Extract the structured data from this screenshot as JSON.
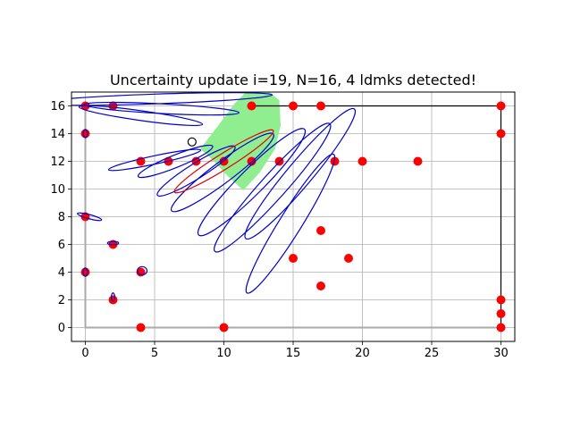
{
  "chart_data": {
    "type": "scatter",
    "title": "Uncertainty update i=19, N=16, 4 ldmks detected!",
    "xlabel": "",
    "ylabel": "",
    "xlim": [
      -1,
      31
    ],
    "ylim": [
      -1,
      17
    ],
    "x_ticks": [
      0,
      5,
      10,
      15,
      20,
      25,
      30
    ],
    "y_ticks": [
      0,
      2,
      4,
      6,
      8,
      10,
      12,
      14,
      16
    ],
    "grid": true,
    "colors": {
      "landmark": "#ff0000",
      "ellipse": "#0000cc",
      "robot_ellipse": "#dd0000",
      "fov": "#90ee90",
      "grid": "#b0b0b0",
      "boundary": "#000000",
      "boundary_gray": "#aaaaaa"
    },
    "boundary": {
      "black": [
        [
          12,
          16
        ],
        [
          30,
          16
        ],
        [
          30,
          0
        ]
      ],
      "gray": [
        [
          0,
          16
        ],
        [
          0,
          0
        ],
        [
          30,
          0
        ]
      ]
    },
    "fov_polygon": [
      [
        8.3,
        12.9
      ],
      [
        9.6,
        14.6
      ],
      [
        10.8,
        16.2
      ],
      [
        11.6,
        17.0
      ],
      [
        13.3,
        17.0
      ],
      [
        14.0,
        16.4
      ],
      [
        14.1,
        14.6
      ],
      [
        13.7,
        12.9
      ],
      [
        12.6,
        11.2
      ],
      [
        11.4,
        9.9
      ],
      [
        10.2,
        11.0
      ],
      [
        9.3,
        12.0
      ]
    ],
    "landmarks": [
      [
        0,
        16
      ],
      [
        2,
        16
      ],
      [
        0,
        14
      ],
      [
        0,
        8
      ],
      [
        0,
        4
      ],
      [
        2,
        6
      ],
      [
        2,
        2
      ],
      [
        4,
        12
      ],
      [
        4,
        4
      ],
      [
        4,
        0
      ],
      [
        6,
        12
      ],
      [
        8,
        12
      ],
      [
        10,
        12
      ],
      [
        10,
        0
      ],
      [
        12,
        16
      ],
      [
        12,
        12
      ],
      [
        14,
        12
      ],
      [
        15,
        16
      ],
      [
        15,
        5
      ],
      [
        17,
        16
      ],
      [
        17,
        7
      ],
      [
        17,
        3
      ],
      [
        18,
        12
      ],
      [
        19,
        5
      ],
      [
        20,
        12
      ],
      [
        24,
        12
      ],
      [
        30,
        16
      ],
      [
        30,
        14
      ],
      [
        30,
        2
      ],
      [
        30,
        1
      ],
      [
        30,
        0
      ]
    ],
    "estimate_ellipses": [
      {
        "cx": 5,
        "cy": 16.5,
        "rx": 8.5,
        "ry": 0.35,
        "angle": -2
      },
      {
        "cx": 5.5,
        "cy": 15.8,
        "rx": 5.6,
        "ry": 0.35,
        "angle": 3
      },
      {
        "cx": 4,
        "cy": 15.3,
        "rx": 4.5,
        "ry": 0.35,
        "angle": 8
      },
      {
        "cx": 5,
        "cy": 12.1,
        "rx": 3.4,
        "ry": 0.3,
        "angle": -12
      },
      {
        "cx": 6.5,
        "cy": 12.0,
        "rx": 2.9,
        "ry": 0.45,
        "angle": -22
      },
      {
        "cx": 8.0,
        "cy": 11.3,
        "rx": 3.3,
        "ry": 0.55,
        "angle": -32
      },
      {
        "cx": 9.9,
        "cy": 11.2,
        "rx": 4.6,
        "ry": 0.75,
        "angle": -37
      },
      {
        "cx": 12.0,
        "cy": 10.5,
        "rx": 5.4,
        "ry": 0.9,
        "angle": -45
      },
      {
        "cx": 13.5,
        "cy": 10.1,
        "rx": 6.2,
        "ry": 0.9,
        "angle": -48
      },
      {
        "cx": 15.5,
        "cy": 11.1,
        "rx": 6.1,
        "ry": 0.9,
        "angle": -50
      },
      {
        "cx": 14.8,
        "cy": 7.5,
        "rx": 5.9,
        "ry": 0.8,
        "angle": -58
      },
      {
        "cx": 0.3,
        "cy": 8.0,
        "rx": 0.9,
        "ry": 0.15,
        "angle": 15
      },
      {
        "cx": 2,
        "cy": 6.1,
        "rx": 0.4,
        "ry": 0.12,
        "angle": 0
      },
      {
        "cx": 4.1,
        "cy": 4.1,
        "rx": 0.35,
        "ry": 0.3,
        "angle": 0
      },
      {
        "cx": 2,
        "cy": 2.2,
        "rx": 0.12,
        "ry": 0.3,
        "angle": 0
      },
      {
        "cx": 0,
        "cy": 4.0,
        "rx": 0.15,
        "ry": 0.3,
        "angle": 0
      },
      {
        "cx": 0,
        "cy": 14.0,
        "rx": 0.15,
        "ry": 0.3,
        "angle": 0
      }
    ],
    "robot_ellipse": {
      "cx": 10,
      "cy": 12.0,
      "rx": 4.2,
      "ry": 0.55,
      "angle": -32
    },
    "robot": {
      "x": 7.7,
      "y": 13.4
    }
  }
}
